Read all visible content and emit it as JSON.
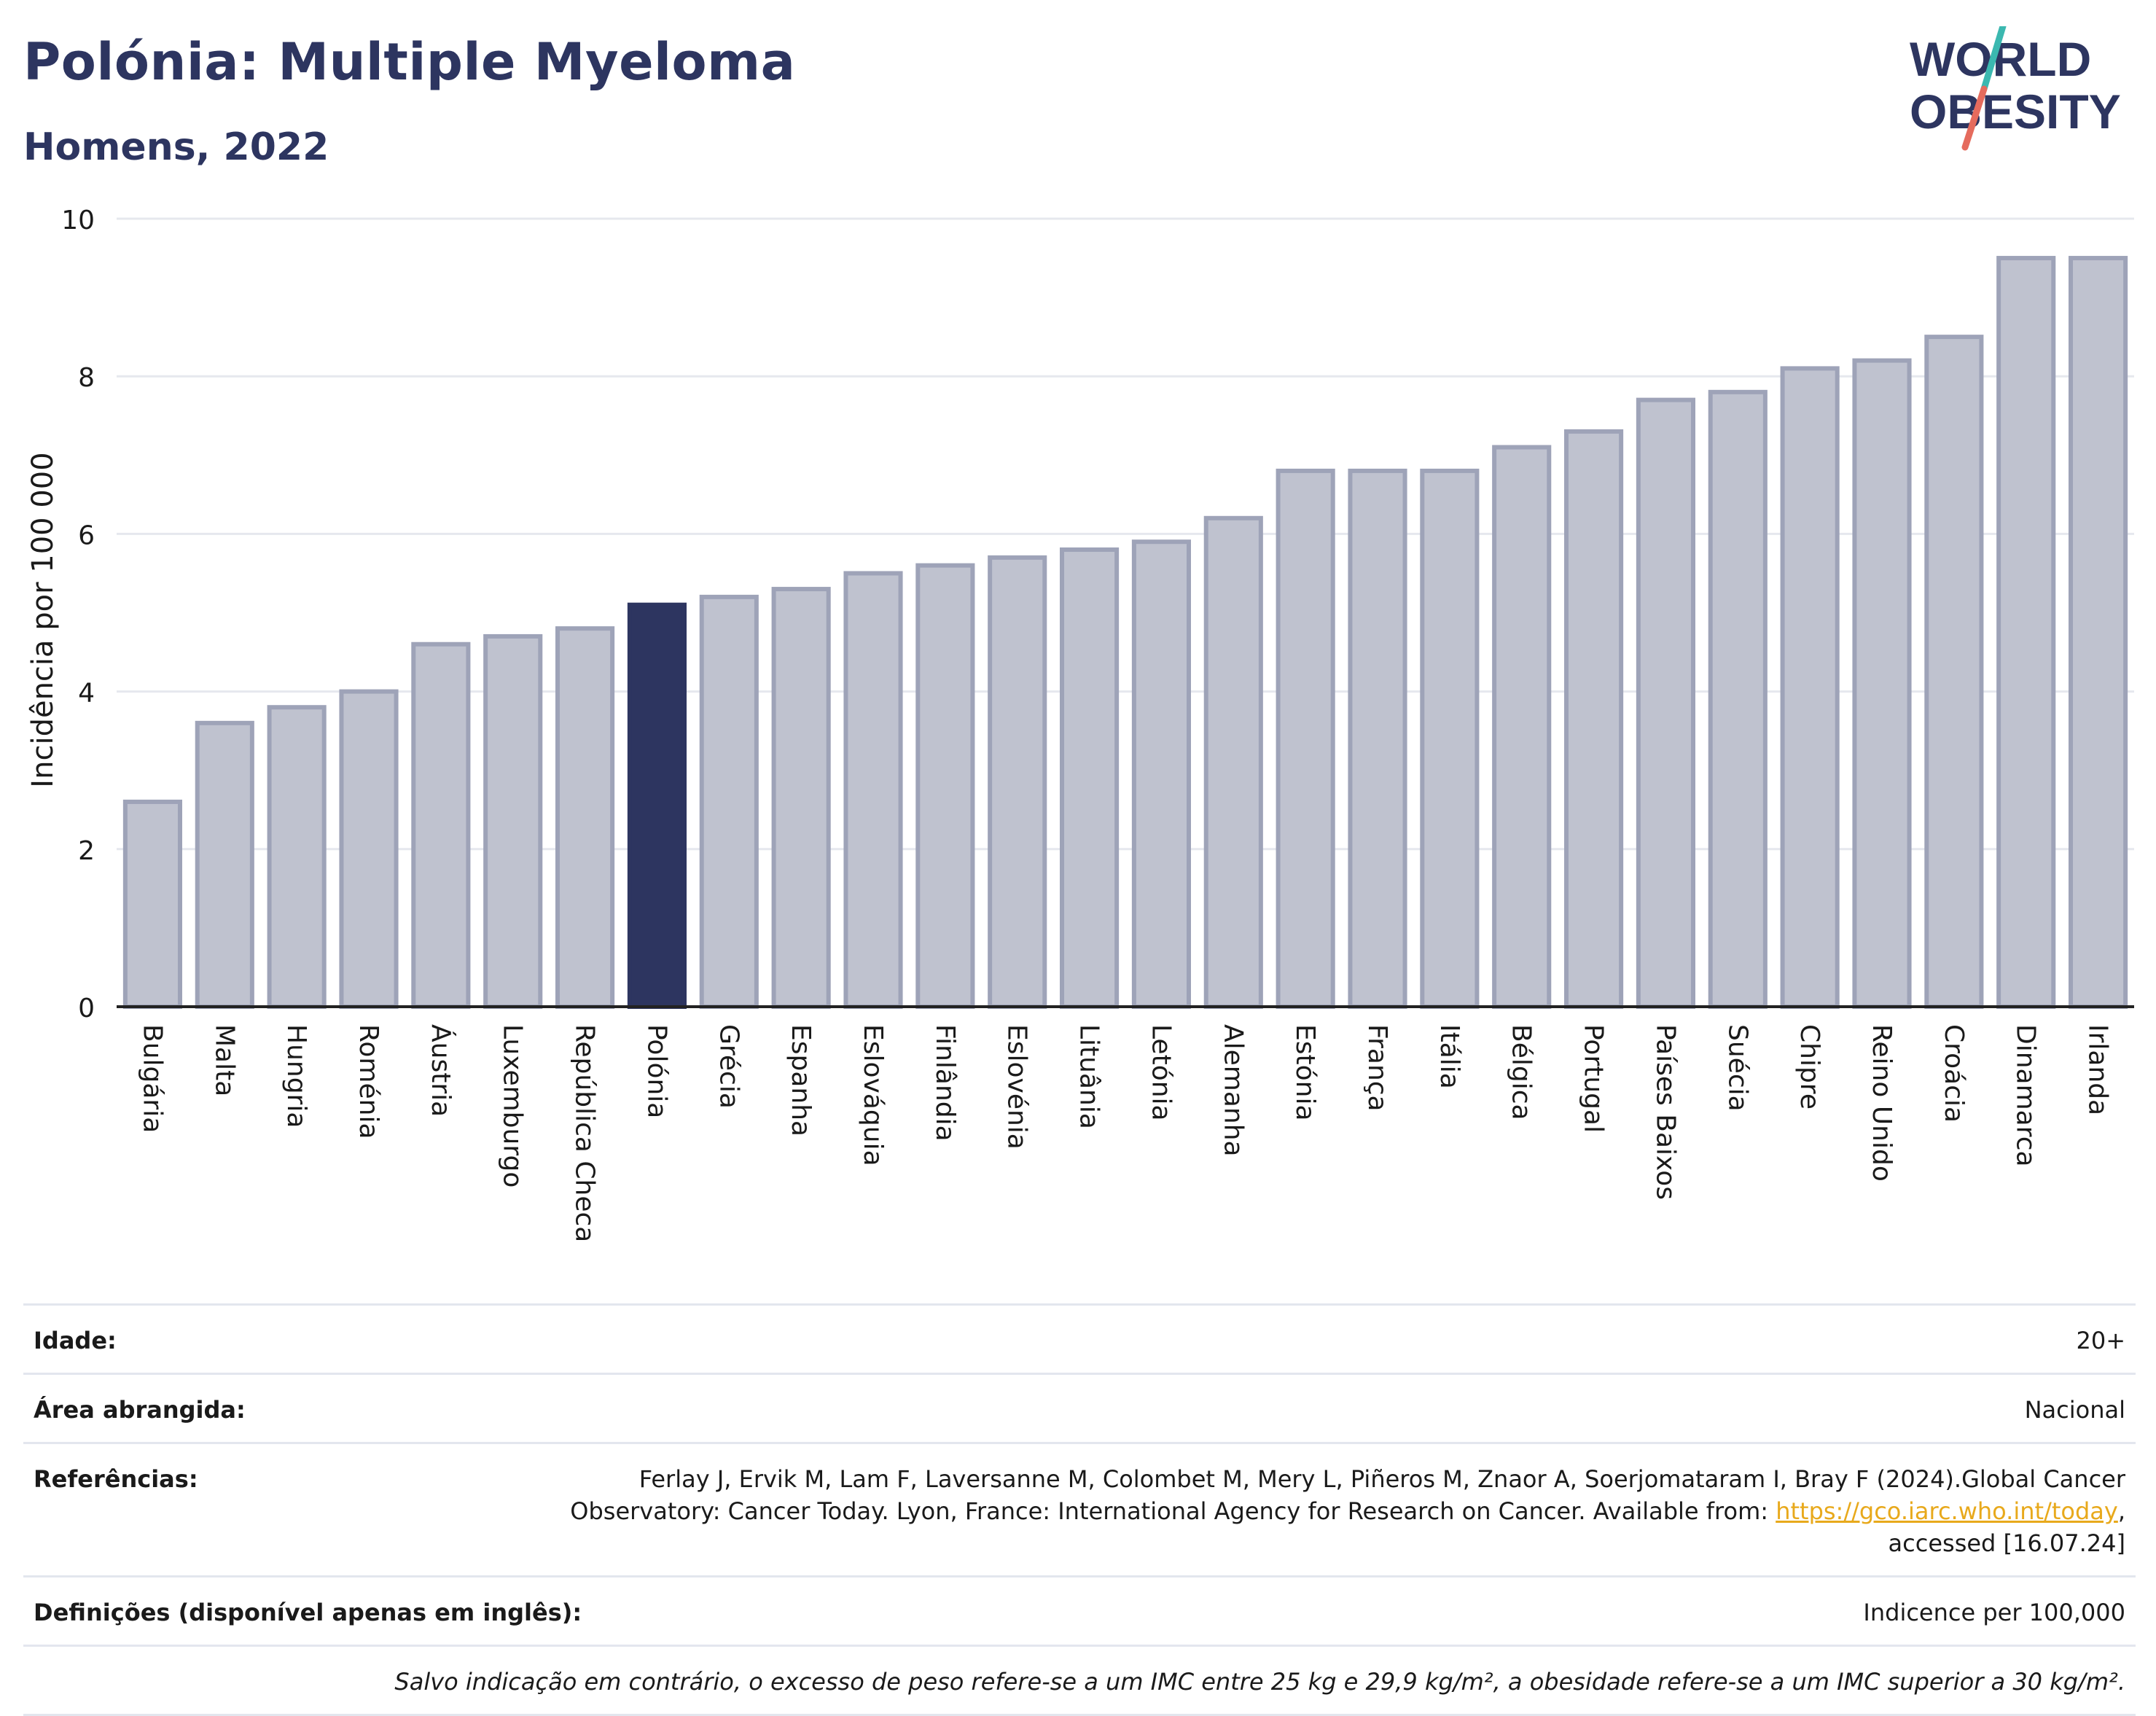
{
  "header": {
    "title": "Polónia: Multiple Myeloma",
    "subtitle": "Homens, 2022"
  },
  "logo": {
    "line1": "WORLD",
    "line2": "OBESITY",
    "colors": {
      "text": "#2d3560",
      "slash_top": "#3bb8b0",
      "slash_bottom": "#e56b5d"
    }
  },
  "chart_data": {
    "type": "bar",
    "ylabel": "Incidência por 100 000",
    "ylim": [
      0,
      10
    ],
    "yticks": [
      0,
      2,
      4,
      6,
      8,
      10
    ],
    "grid": true,
    "highlight": "Polónia",
    "colors": {
      "bar": "#bfc2cf",
      "bar_border": "#9ea3b8",
      "highlight": "#2d3560"
    },
    "categories": [
      "Bulgária",
      "Malta",
      "Hungria",
      "Roménia",
      "Áustria",
      "Luxemburgo",
      "República Checa",
      "Polónia",
      "Grécia",
      "Espanha",
      "Eslováquia",
      "Finlândia",
      "Eslovénia",
      "Lituânia",
      "Letónia",
      "Alemanha",
      "Estónia",
      "França",
      "Itália",
      "Bélgica",
      "Portugal",
      "Países Baixos",
      "Suécia",
      "Chipre",
      "Reino Unido",
      "Croácia",
      "Dinamarca",
      "Irlanda"
    ],
    "values": [
      2.6,
      3.6,
      3.8,
      4.0,
      4.6,
      4.7,
      4.8,
      5.1,
      5.2,
      5.3,
      5.5,
      5.6,
      5.7,
      5.8,
      5.9,
      6.2,
      6.8,
      6.8,
      6.8,
      7.1,
      7.3,
      7.7,
      7.8,
      8.1,
      8.2,
      8.5,
      9.5,
      9.5
    ]
  },
  "info": {
    "age_label": "Idade:",
    "age_value": "20+",
    "area_label": "Área abrangida:",
    "area_value": "Nacional",
    "refs_label": "Referências:",
    "refs_text": "Ferlay J, Ervik M, Lam F, Laversanne M, Colombet M, Mery L, Piñeros M, Znaor A, Soerjomataram I, Bray F (2024).Global Cancer Observatory: Cancer Today. Lyon, France: International Agency for Research on Cancer. Available from:",
    "refs_link": "https://gco.iarc.who.int/today",
    "refs_tail": ", accessed [16.07.24]",
    "defs_label": "Definições (disponível apenas em inglês):",
    "defs_value": "Indicence per 100,000",
    "note": "Salvo indicação em contrário, o excesso de peso refere-se a um IMC entre 25 kg e 29,9 kg/m², a obesidade refere-se a um IMC superior a 30 kg/m²."
  }
}
